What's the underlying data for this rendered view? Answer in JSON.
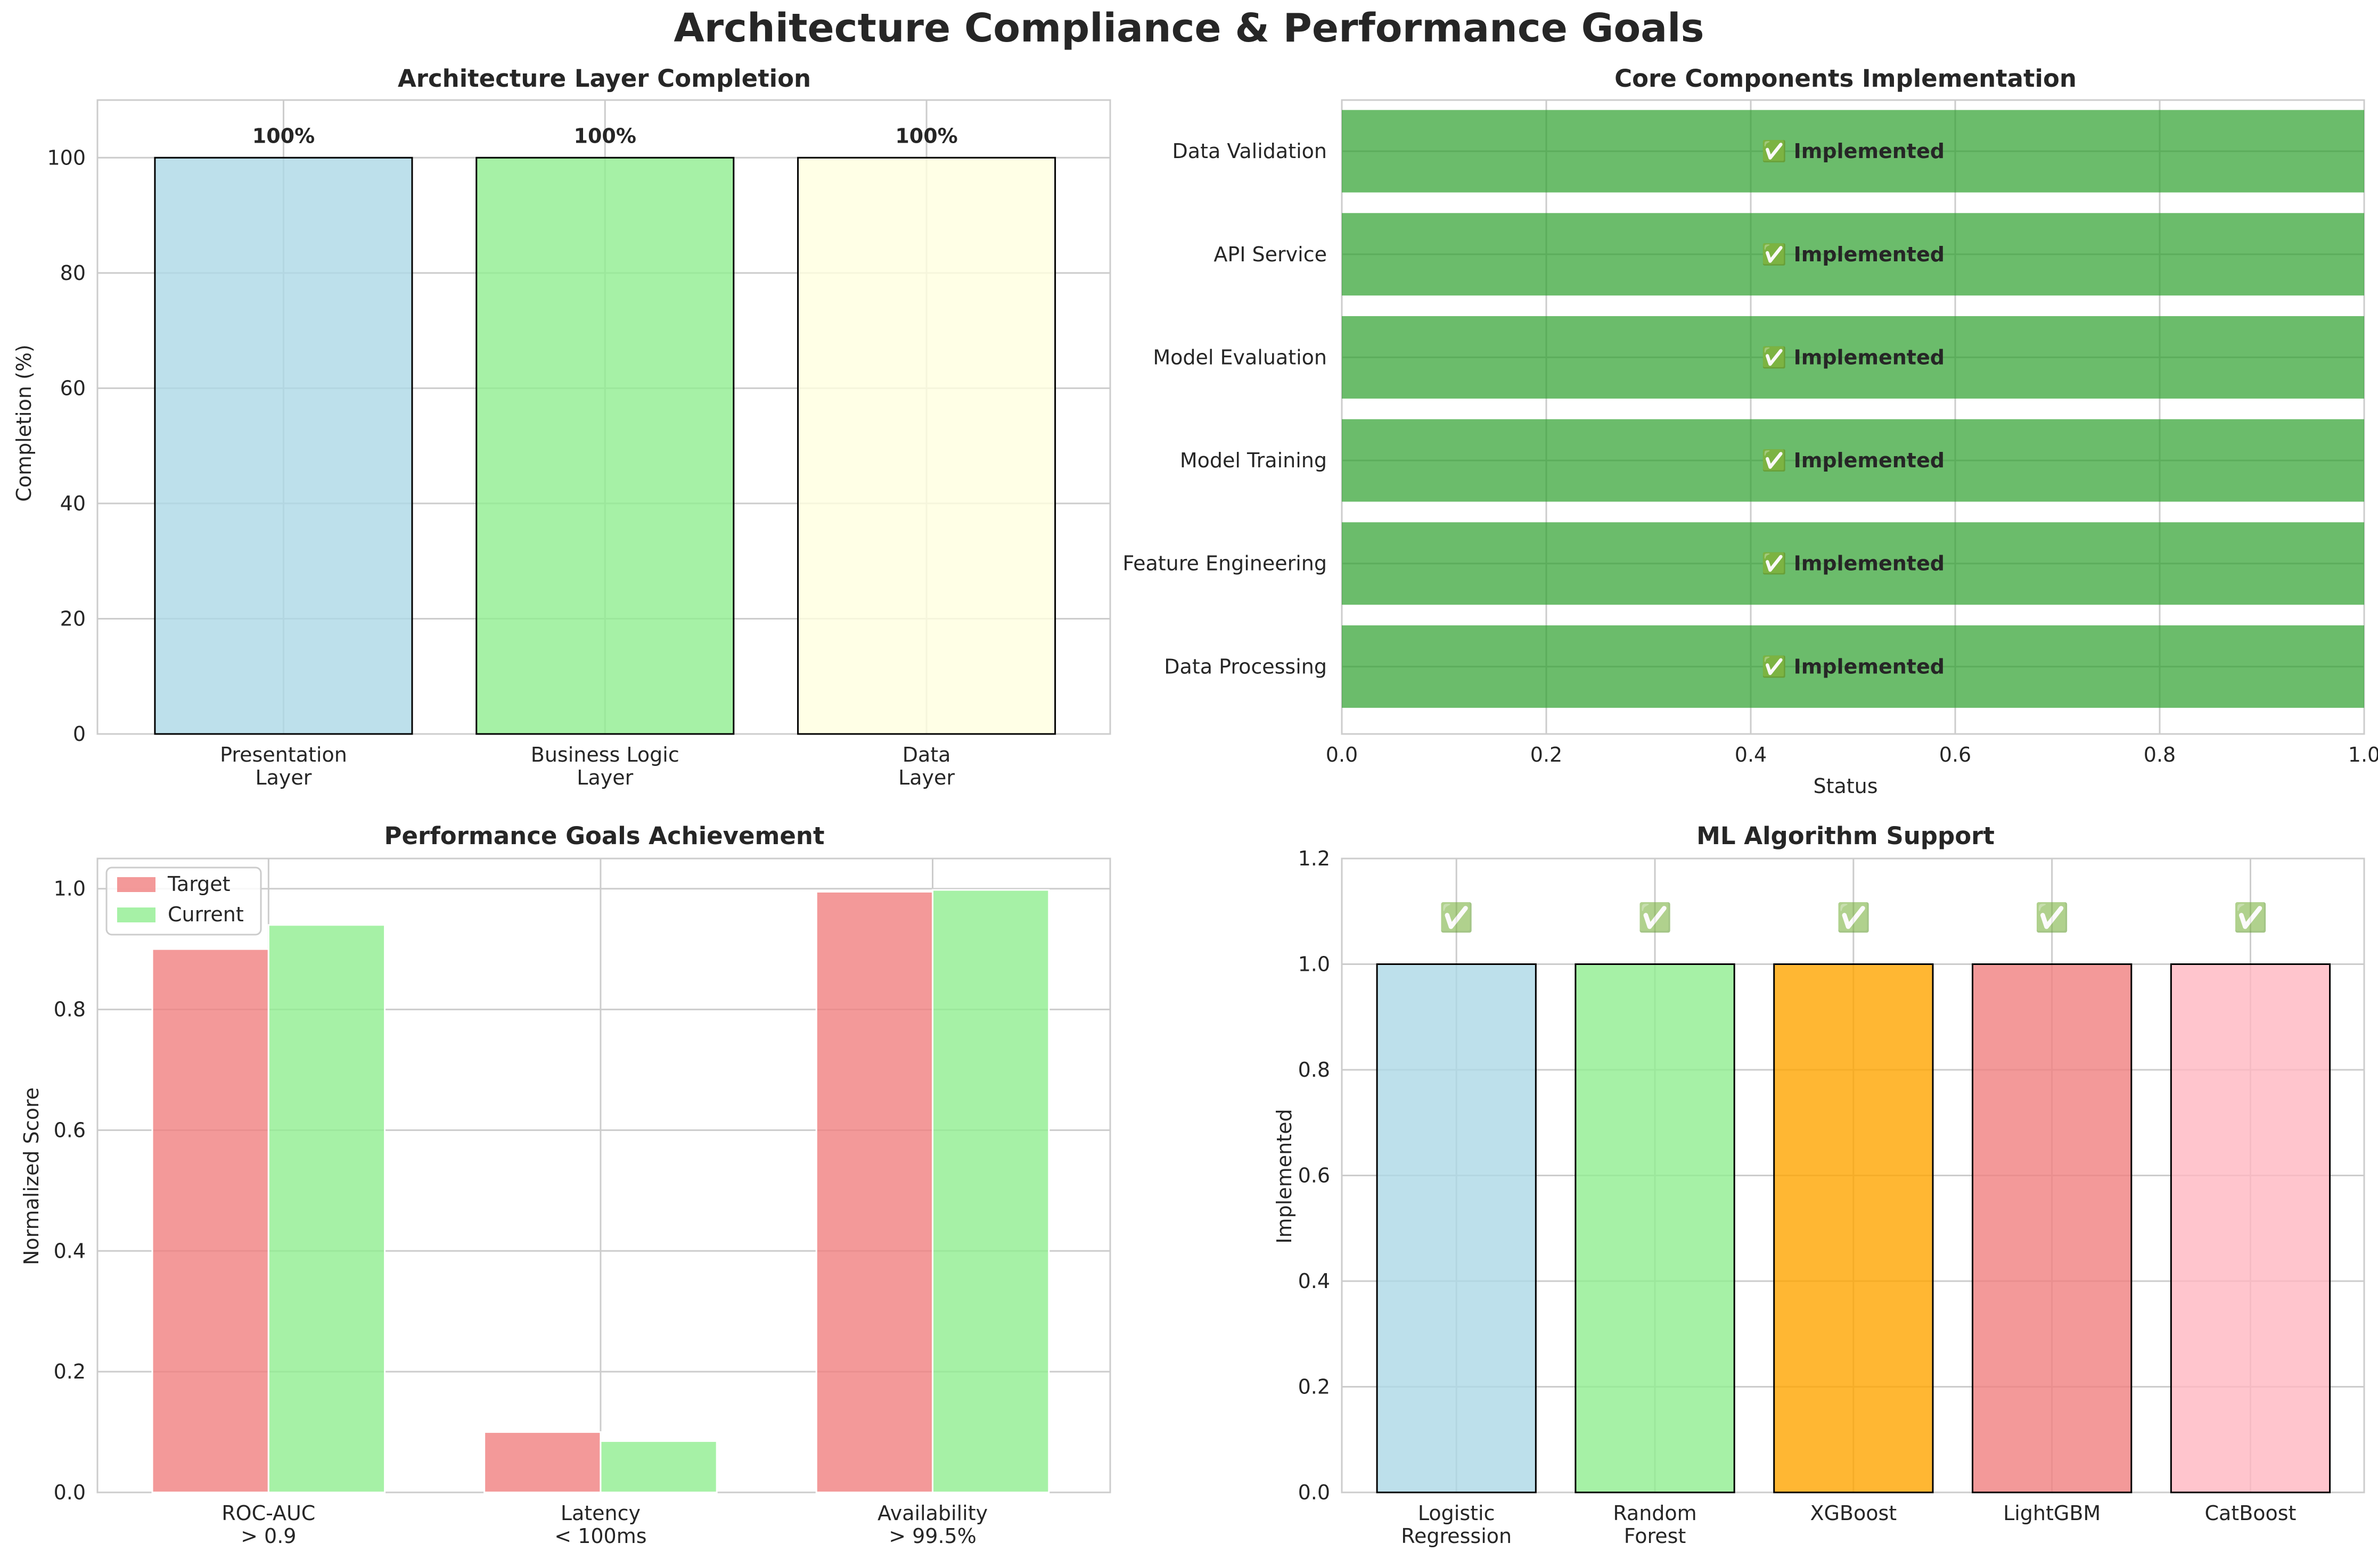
{
  "title": "Architecture Compliance & Performance Goals",
  "chart_data": [
    {
      "type": "bar",
      "title": "Architecture Layer Completion",
      "xlabel": "",
      "ylabel": "Completion (%)",
      "categories": [
        [
          "Presentation",
          "Layer"
        ],
        [
          "Business Logic",
          "Layer"
        ],
        [
          "Data",
          "Layer"
        ]
      ],
      "values": [
        100,
        100,
        100
      ],
      "data_labels": [
        "100%",
        "100%",
        "100%"
      ],
      "colors": [
        "#add8e6",
        "#90ee90",
        "#ffffe0"
      ],
      "ylim": [
        0,
        110
      ],
      "yticks": [
        0,
        20,
        40,
        60,
        80,
        100
      ],
      "grid": true
    },
    {
      "type": "bar",
      "orientation": "horizontal",
      "title": "Core Components Implementation",
      "xlabel": "Status",
      "ylabel": "",
      "categories": [
        "Data Processing",
        "Feature Engineering",
        "Model Training",
        "Model Evaluation",
        "API Service",
        "Data Validation"
      ],
      "values": [
        1,
        1,
        1,
        1,
        1,
        1
      ],
      "data_labels": [
        "✅ Implemented",
        "✅ Implemented",
        "✅ Implemented",
        "✅ Implemented",
        "✅ Implemented",
        "✅ Implemented"
      ],
      "color": "#2ca02c",
      "xlim": [
        0,
        1.0
      ],
      "xticks": [
        0.0,
        0.2,
        0.4,
        0.6,
        0.8,
        1.0
      ],
      "grid": true
    },
    {
      "type": "bar",
      "title": "Performance Goals Achievement",
      "xlabel": "",
      "ylabel": "Normalized Score",
      "categories": [
        [
          "ROC-AUC",
          "> 0.9"
        ],
        [
          "Latency",
          "< 100ms"
        ],
        [
          "Availability",
          "> 99.5%"
        ]
      ],
      "series": [
        {
          "name": "Target",
          "values": [
            0.9,
            0.1,
            0.995
          ],
          "color": "#f08080"
        },
        {
          "name": "Current",
          "values": [
            0.94,
            0.085,
            0.998
          ],
          "color": "#90ee90"
        }
      ],
      "ylim": [
        0,
        1.05
      ],
      "yticks": [
        0.0,
        0.2,
        0.4,
        0.6,
        0.8,
        1.0
      ],
      "legend": "top-left",
      "grid": true
    },
    {
      "type": "bar",
      "title": "ML Algorithm Support",
      "xlabel": "",
      "ylabel": "Implemented",
      "categories": [
        [
          "Logistic",
          "Regression"
        ],
        [
          "Random",
          "Forest"
        ],
        [
          "XGBoost"
        ],
        [
          "LightGBM"
        ],
        [
          "CatBoost"
        ]
      ],
      "values": [
        1,
        1,
        1,
        1,
        1
      ],
      "data_labels": [
        "✅",
        "✅",
        "✅",
        "✅",
        "✅"
      ],
      "colors": [
        "#add8e6",
        "#90ee90",
        "#ffa500",
        "#f08080",
        "#ffb6c1"
      ],
      "ylim": [
        0,
        1.2
      ],
      "yticks": [
        0.0,
        0.2,
        0.4,
        0.6,
        0.8,
        1.0,
        1.2
      ],
      "grid": true
    }
  ]
}
